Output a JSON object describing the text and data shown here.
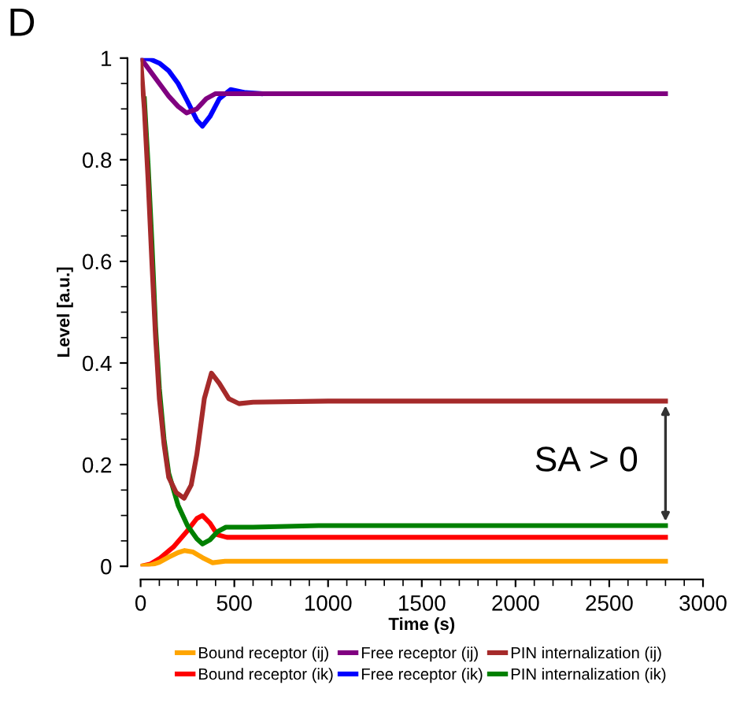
{
  "chart_data": {
    "type": "line",
    "xlabel": "Time (s)",
    "ylabel": "Level [a.u.]",
    "xlim": [
      0,
      3000
    ],
    "ylim": [
      0,
      1
    ],
    "xticks": [
      0,
      500,
      1000,
      1500,
      2000,
      2500,
      3000
    ],
    "yticks": [
      0,
      0.2,
      0.4,
      0.6,
      0.8,
      1
    ],
    "grid": false,
    "legend": "bottom",
    "marker": "none",
    "line_style": "solid",
    "annotations": [
      "D",
      "SA > 0"
    ],
    "series": [
      {
        "name": "Bound receptor (ij)",
        "color": "#ffa500",
        "x": [
          0,
          50,
          100,
          150,
          200,
          235,
          280,
          330,
          385,
          450,
          1000,
          2800
        ],
        "values": [
          0,
          0.002,
          0.008,
          0.018,
          0.027,
          0.031,
          0.028,
          0.017,
          0.007,
          0.01,
          0.01,
          0.01
        ]
      },
      {
        "name": "Bound receptor (ik)",
        "color": "#ff0000",
        "x": [
          0,
          50,
          100,
          175,
          250,
          300,
          330,
          370,
          410,
          460,
          1000,
          2800
        ],
        "values": [
          0,
          0.004,
          0.015,
          0.038,
          0.07,
          0.094,
          0.1,
          0.085,
          0.062,
          0.057,
          0.057,
          0.057
        ]
      },
      {
        "name": "Free receptor (ij)",
        "color": "#800080",
        "x": [
          0,
          50,
          100,
          150,
          200,
          245,
          300,
          350,
          400,
          500,
          1000,
          2800
        ],
        "values": [
          1,
          0.975,
          0.95,
          0.925,
          0.905,
          0.892,
          0.9,
          0.92,
          0.93,
          0.93,
          0.93,
          0.93
        ]
      },
      {
        "name": "Free receptor (ik)",
        "color": "#0000ff",
        "x": [
          0,
          50,
          100,
          150,
          200,
          250,
          300,
          330,
          370,
          420,
          480,
          560,
          640
        ],
        "values": [
          1,
          0.998,
          0.99,
          0.975,
          0.95,
          0.915,
          0.878,
          0.866,
          0.885,
          0.92,
          0.938,
          0.932,
          0.93
        ]
      },
      {
        "name": "PIN internalization (ij)",
        "color": "#a52a2a",
        "x": [
          0,
          20,
          40,
          60,
          80,
          100,
          125,
          150,
          190,
          232,
          270,
          300,
          340,
          378,
          420,
          470,
          525,
          600,
          1000,
          2800
        ],
        "values": [
          1,
          0.9,
          0.76,
          0.6,
          0.45,
          0.33,
          0.24,
          0.175,
          0.145,
          0.134,
          0.16,
          0.22,
          0.33,
          0.38,
          0.36,
          0.33,
          0.32,
          0.323,
          0.325,
          0.325
        ]
      },
      {
        "name": "PIN internalization (ik)",
        "color": "#008000",
        "x": [
          20,
          40,
          60,
          80,
          100,
          125,
          150,
          200,
          250,
          300,
          330,
          370,
          410,
          455,
          600,
          950,
          2800
        ],
        "values": [
          0.92,
          0.79,
          0.64,
          0.47,
          0.35,
          0.25,
          0.183,
          0.12,
          0.08,
          0.054,
          0.044,
          0.052,
          0.068,
          0.077,
          0.077,
          0.08,
          0.08
        ]
      }
    ]
  }
}
